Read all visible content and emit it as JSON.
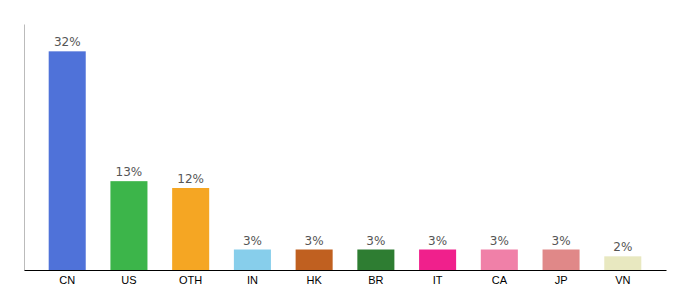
{
  "chart_data": {
    "type": "bar",
    "categories": [
      "CN",
      "US",
      "OTH",
      "IN",
      "HK",
      "BR",
      "IT",
      "CA",
      "JP",
      "VN"
    ],
    "values": [
      32,
      13,
      12,
      3,
      3,
      3,
      3,
      3,
      3,
      2
    ],
    "colors": [
      "#4f72d9",
      "#3cb54a",
      "#f5a623",
      "#87ceeb",
      "#c06020",
      "#2e7d32",
      "#f0208c",
      "#f080a8",
      "#e08888",
      "#e8e8c0"
    ],
    "ylim": [
      0,
      36
    ],
    "data_labels": true,
    "value_labels": [
      "32%",
      "13%",
      "12%",
      "3%",
      "3%",
      "3%",
      "3%",
      "3%",
      "3%",
      "2%"
    ],
    "tick_labels": "x",
    "grid": false
  }
}
